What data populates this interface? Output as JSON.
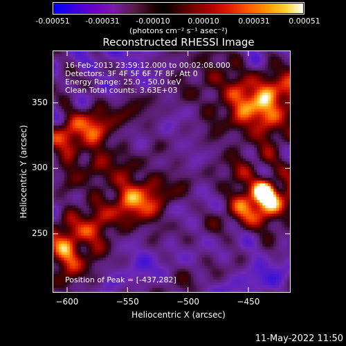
{
  "colorbar": {
    "tick_labels": [
      "-0.00051",
      "-0.00031",
      "-0.00010",
      "0.00010",
      "0.00031",
      "0.00051"
    ],
    "units": "(photons cm⁻² s⁻¹ asec⁻²)"
  },
  "chart_data": {
    "type": "heatmap",
    "title": "Reconstructed RHESSI Image",
    "xlabel": "Heliocentric X (arcsec)",
    "ylabel": "Heliocentric Y (arcsec)",
    "xlim": [
      -612,
      -415
    ],
    "ylim": [
      205,
      390
    ],
    "x_ticks": [
      -600,
      -550,
      -500,
      -450
    ],
    "y_ticks": [
      250,
      300,
      350
    ],
    "colorscale_range": [
      -0.00051,
      0.00051
    ],
    "info_lines": [
      "16-Feb-2013 23:59:12.000 to 00:02:08.000",
      "Detectors: 3F 4F 5F 6F 7F 8F, Att 0",
      "Energy Range: 25.0 - 50.0 keV",
      "Clean    Total counts: 3.63E+03"
    ],
    "peak_label": "Position of Peak = [-437,282]",
    "peak": [
      -437,
      282
    ],
    "bright_regions": [
      {
        "x": -437,
        "y": 282,
        "rel_intensity": 1.0
      },
      {
        "x": -432,
        "y": 355,
        "rel_intensity": 0.8
      },
      {
        "x": -590,
        "y": 325,
        "rel_intensity": 0.85
      },
      {
        "x": -600,
        "y": 245,
        "rel_intensity": 0.8
      },
      {
        "x": -540,
        "y": 280,
        "rel_intensity": 0.75
      },
      {
        "x": -470,
        "y": 360,
        "rel_intensity": 0.6
      }
    ]
  },
  "footer": {
    "date": "11-May-2022 11:50"
  }
}
